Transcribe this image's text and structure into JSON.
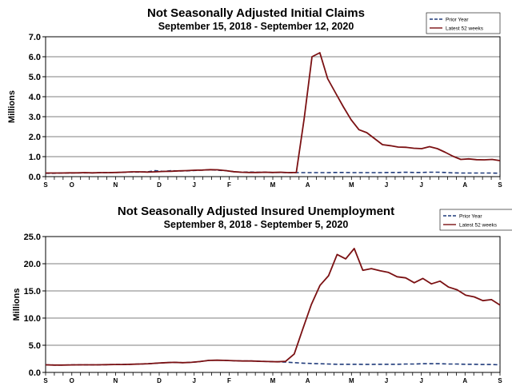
{
  "colors": {
    "latest": "#7b1113",
    "prior": "#1f3a7a",
    "axis": "#000000",
    "grid": "#000000"
  },
  "chart_data": [
    {
      "type": "line",
      "title": "Not Seasonally Adjusted Initial Claims",
      "subtitle": "September 15, 2018  -  September 12, 2020",
      "ylabel": "Millions",
      "xlabel": "",
      "ylim": [
        0,
        7
      ],
      "yticks": [
        "0.0",
        "1.0",
        "2.0",
        "3.0",
        "4.0",
        "5.0",
        "6.0",
        "7.0"
      ],
      "xticks": [
        "S",
        "O",
        "N",
        "D",
        "J",
        "F",
        "M",
        "A",
        "M",
        "J",
        "J",
        "A",
        "S"
      ],
      "x_tick_weeks": [
        0,
        3,
        8,
        13,
        17,
        21,
        26,
        30,
        35,
        39,
        43,
        48,
        52
      ],
      "legend": {
        "position": "top-right",
        "entries": [
          "Prior Year",
          "Latest 52 weeks"
        ]
      },
      "series": [
        {
          "name": "Latest 52 weeks",
          "style": "solid",
          "values": [
            0.18,
            0.18,
            0.18,
            0.19,
            0.19,
            0.2,
            0.19,
            0.2,
            0.2,
            0.21,
            0.22,
            0.24,
            0.24,
            0.23,
            0.24,
            0.26,
            0.27,
            0.29,
            0.3,
            0.32,
            0.33,
            0.35,
            0.34,
            0.3,
            0.25,
            0.22,
            0.21,
            0.21,
            0.22,
            0.21,
            0.22,
            0.2,
            0.21,
            2.9,
            6.0,
            6.2,
            4.9,
            4.2,
            3.5,
            2.85,
            2.35,
            2.2,
            1.9,
            1.6,
            1.55,
            1.48,
            1.47,
            1.42,
            1.4,
            1.5,
            1.4,
            1.22,
            1.02,
            0.86,
            0.89,
            0.85,
            0.84,
            0.86,
            0.8
          ]
        },
        {
          "name": "Prior Year",
          "style": "dashed",
          "values": [
            0.17,
            0.17,
            0.18,
            0.18,
            0.19,
            0.19,
            0.19,
            0.2,
            0.2,
            0.21,
            0.22,
            0.23,
            0.23,
            0.24,
            0.3,
            0.26,
            0.3,
            0.28,
            0.29,
            0.31,
            0.33,
            0.34,
            0.32,
            0.3,
            0.25,
            0.22,
            0.23,
            0.22,
            0.22,
            0.21,
            0.21,
            0.2,
            0.2,
            0.2,
            0.2,
            0.2,
            0.2,
            0.21,
            0.21,
            0.2,
            0.2,
            0.2,
            0.2,
            0.2,
            0.21,
            0.21,
            0.22,
            0.21,
            0.21,
            0.22,
            0.22,
            0.21,
            0.19,
            0.18,
            0.18,
            0.18,
            0.18,
            0.18,
            0.17
          ]
        }
      ]
    },
    {
      "type": "line",
      "title": "Not Seasonally Adjusted Insured Unemployment",
      "subtitle": "September 8, 2018 - September 5, 2020",
      "ylabel": "Millions",
      "xlabel": "",
      "ylim": [
        0,
        25
      ],
      "yticks": [
        "0.0",
        "5.0",
        "10.0",
        "15.0",
        "20.0",
        "25.0"
      ],
      "xticks": [
        "S",
        "O",
        "N",
        "D",
        "J",
        "F",
        "M",
        "A",
        "M",
        "J",
        "J",
        "A",
        "S"
      ],
      "x_tick_weeks": [
        0,
        3,
        8,
        13,
        17,
        21,
        26,
        30,
        35,
        39,
        43,
        48,
        52
      ],
      "legend": {
        "position": "top-right",
        "entries": [
          "Prior Year",
          "Latest 52 weeks"
        ]
      },
      "series": [
        {
          "name": "Latest 52 weeks",
          "style": "solid",
          "values": [
            1.4,
            1.35,
            1.35,
            1.38,
            1.4,
            1.4,
            1.4,
            1.42,
            1.45,
            1.45,
            1.5,
            1.55,
            1.6,
            1.7,
            1.8,
            1.85,
            1.8,
            1.85,
            2.0,
            2.2,
            2.25,
            2.2,
            2.15,
            2.1,
            2.1,
            2.05,
            2.0,
            1.95,
            2.05,
            3.4,
            8.0,
            12.5,
            16.0,
            17.8,
            21.7,
            20.9,
            22.8,
            18.8,
            19.1,
            18.7,
            18.4,
            17.6,
            17.4,
            16.5,
            17.3,
            16.3,
            16.8,
            15.7,
            15.2,
            14.2,
            13.9,
            13.2,
            13.4,
            12.4
          ]
        },
        {
          "name": "Prior Year",
          "style": "dashed",
          "values": [
            1.4,
            1.35,
            1.35,
            1.38,
            1.4,
            1.4,
            1.4,
            1.42,
            1.45,
            1.45,
            1.5,
            1.55,
            1.6,
            1.7,
            1.8,
            1.85,
            1.8,
            1.85,
            2.0,
            2.2,
            2.25,
            2.2,
            2.15,
            2.1,
            2.1,
            2.05,
            2.0,
            1.95,
            1.9,
            1.8,
            1.7,
            1.65,
            1.6,
            1.55,
            1.5,
            1.5,
            1.5,
            1.48,
            1.48,
            1.5,
            1.5,
            1.5,
            1.55,
            1.55,
            1.6,
            1.6,
            1.6,
            1.55,
            1.55,
            1.5,
            1.5,
            1.45,
            1.45,
            1.4
          ]
        }
      ]
    }
  ]
}
